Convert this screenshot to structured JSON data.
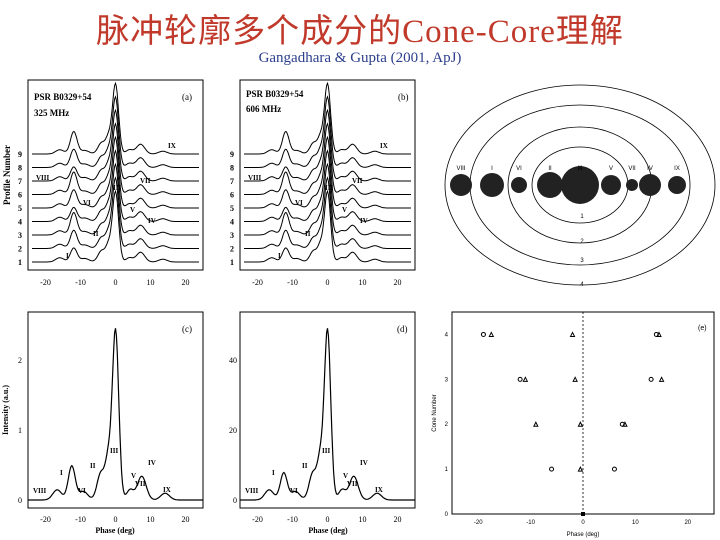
{
  "slide": {
    "title": "脉冲轮廓多个成分的Cone-Core理解",
    "citation": "Gangadhara & Gupta (2001, ApJ)"
  },
  "panel_a": {
    "header": "PSR B0329+54",
    "freq": "325 MHz",
    "tag": "(a)",
    "ylabel": "Profile Number",
    "profile_numbers": [
      "1",
      "2",
      "3",
      "4",
      "5",
      "6",
      "7",
      "8",
      "9"
    ],
    "xticks": [
      "-20",
      "-10",
      "0",
      "10",
      "20"
    ],
    "components": [
      "IX",
      "VIII",
      "III",
      "VII",
      "VI",
      "V",
      "IV",
      "II",
      "I"
    ]
  },
  "panel_b": {
    "header": "PSR B0329+54",
    "freq": "606 MHz",
    "tag": "(b)",
    "profile_numbers": [
      "1",
      "2",
      "3",
      "4",
      "5",
      "6",
      "7",
      "8",
      "9"
    ],
    "xticks": [
      "-20",
      "-10",
      "0",
      "10",
      "20"
    ],
    "components": [
      "IX",
      "VIII",
      "III",
      "VII",
      "VI",
      "V",
      "IV",
      "II",
      "I"
    ]
  },
  "panel_c": {
    "tag": "(c)",
    "ylabel": "Intensity (a.u.)",
    "xlabel": "Phase (deg)",
    "yticks": [
      "0",
      "1",
      "2"
    ],
    "xticks": [
      "-20",
      "-10",
      "0",
      "10",
      "20"
    ],
    "components": [
      "VIII",
      "I",
      "VI",
      "II",
      "III",
      "V",
      "VII",
      "IV",
      "IX"
    ]
  },
  "panel_d": {
    "tag": "(d)",
    "xlabel": "Phase (deg)",
    "yticks": [
      "0",
      "20",
      "40"
    ],
    "xticks": [
      "-20",
      "-10",
      "0",
      "10",
      "20"
    ],
    "components": [
      "VIII",
      "I",
      "VI",
      "II",
      "III",
      "V",
      "VII",
      "IV",
      "IX"
    ]
  },
  "cone_diagram": {
    "labels_top": [
      "VIII",
      "I",
      "VI",
      "II",
      "III",
      "V",
      "VII",
      "IV",
      "IX"
    ],
    "ring_numbers": [
      "1",
      "2",
      "3",
      "4"
    ]
  },
  "panel_e": {
    "tag": "(e)",
    "ylabel": "Cone Number",
    "xlabel": "Phase (deg)",
    "yticks": [
      "0",
      "1",
      "2",
      "3",
      "4"
    ],
    "xticks": [
      "-20",
      "-10",
      "0",
      "10",
      "20"
    ]
  },
  "chart_data": {
    "type": "scatter",
    "title": "",
    "xlabel": "Phase (deg)",
    "ylabel": "Cone Number",
    "xlim": [
      -25,
      25
    ],
    "ylim": [
      0,
      4.5
    ],
    "series": [
      {
        "name": "circle",
        "points": [
          [
            -19,
            4
          ],
          [
            -12,
            3
          ],
          [
            -6,
            1
          ],
          [
            6,
            1
          ],
          [
            7.5,
            2
          ],
          [
            14,
            4
          ],
          [
            13,
            3
          ]
        ]
      },
      {
        "name": "triangle",
        "points": [
          [
            -17.5,
            4
          ],
          [
            -11,
            3
          ],
          [
            -9,
            2
          ],
          [
            -1.5,
            3
          ],
          [
            -2,
            4
          ],
          [
            -0.5,
            2
          ],
          [
            -0.5,
            1
          ],
          [
            15,
            3
          ],
          [
            14.5,
            4
          ],
          [
            8,
            2
          ]
        ]
      },
      {
        "name": "square",
        "points": [
          [
            0,
            0
          ]
        ]
      }
    ]
  }
}
